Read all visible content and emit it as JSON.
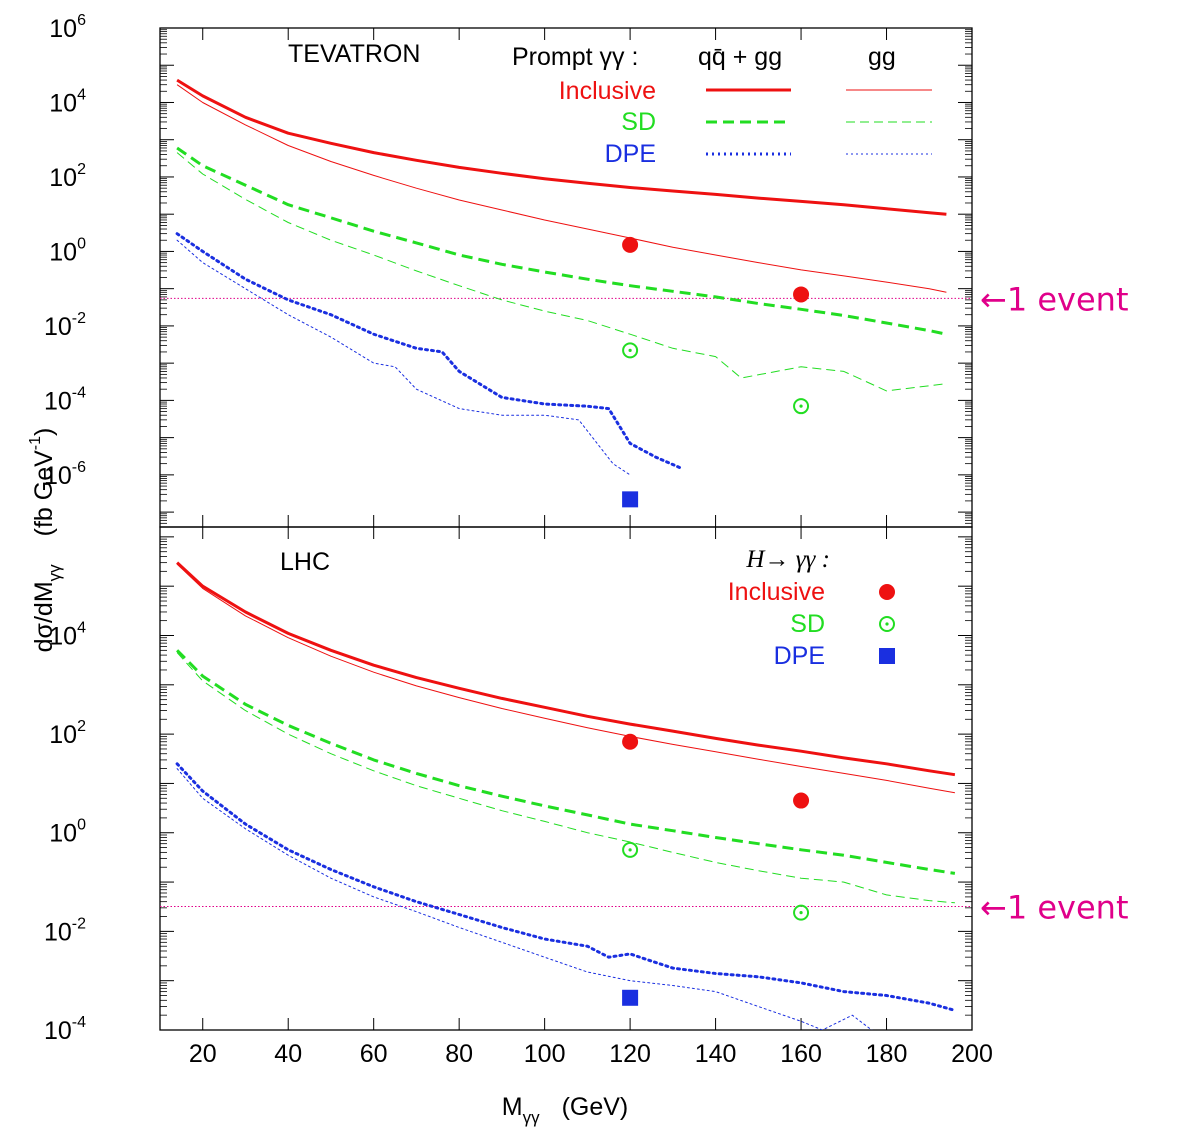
{
  "colors": {
    "inclusive": "#ee1111",
    "sd": "#22dd22",
    "dpe": "#1a2fe0",
    "event": "#e0008a"
  },
  "axes": {
    "xlabel": {
      "main": "M",
      "sub": "γγ",
      "unit": "(GeV)"
    },
    "ylabel": {
      "pre": "dσ/dM",
      "sub": "γγ",
      "unit_pre": "(fb GeV",
      "unit_exp": "-1",
      "unit_post": ")"
    },
    "xticks": [
      20,
      40,
      60,
      80,
      100,
      120,
      140,
      160,
      180,
      200
    ],
    "xlim": [
      10,
      200
    ]
  },
  "legend": {
    "prompt_label": "Prompt γγ :",
    "col_qq_gg": "qq̄ + gg",
    "col_gg": "gg",
    "row_inclusive": "Inclusive",
    "row_sd": "SD",
    "row_dpe": "DPE",
    "higgs_label": "H→ γγ :",
    "higgs_inclusive": "Inclusive",
    "higgs_sd": "SD",
    "higgs_dpe": "DPE"
  },
  "chart_data": [
    {
      "type": "line",
      "title": "TEVATRON",
      "ylim_log10": [
        -7.4,
        6
      ],
      "yticks_exp": [
        -6,
        -4,
        -2,
        0,
        2,
        4,
        6
      ],
      "one_event_level": 0.055,
      "one_event_label": "←1 event",
      "series": [
        {
          "name": "Inclusive qq̄ + gg",
          "style": "thick-solid",
          "color_key": "inclusive",
          "x": [
            14,
            20,
            30,
            40,
            50,
            60,
            70,
            80,
            90,
            100,
            110,
            120,
            130,
            140,
            150,
            160,
            170,
            180,
            190,
            194
          ],
          "y": [
            40000,
            15000,
            4000,
            1500,
            800,
            450,
            280,
            180,
            125,
            90,
            68,
            52,
            42,
            34,
            27,
            22,
            18,
            14,
            11,
            10
          ]
        },
        {
          "name": "Inclusive gg",
          "style": "thin-solid",
          "color_key": "inclusive",
          "x": [
            14,
            20,
            30,
            40,
            50,
            60,
            70,
            80,
            90,
            100,
            110,
            120,
            130,
            140,
            150,
            160,
            170,
            180,
            190,
            194
          ],
          "y": [
            30000,
            10000,
            2500,
            700,
            260,
            110,
            50,
            24,
            13,
            7,
            4,
            2.3,
            1.3,
            0.8,
            0.5,
            0.32,
            0.22,
            0.15,
            0.1,
            0.08
          ]
        },
        {
          "name": "SD qq̄ + gg",
          "style": "thick-dashed",
          "color_key": "sd",
          "x": [
            14,
            20,
            30,
            40,
            50,
            60,
            70,
            80,
            90,
            100,
            110,
            120,
            130,
            140,
            150,
            160,
            170,
            180,
            190,
            194
          ],
          "y": [
            600,
            200,
            60,
            18,
            8,
            3.5,
            1.7,
            0.8,
            0.45,
            0.28,
            0.18,
            0.12,
            0.085,
            0.06,
            0.04,
            0.028,
            0.019,
            0.012,
            0.0075,
            0.006
          ]
        },
        {
          "name": "SD gg",
          "style": "thin-dashed",
          "color_key": "sd",
          "x": [
            14,
            20,
            30,
            40,
            50,
            60,
            70,
            80,
            90,
            100,
            110,
            120,
            130,
            140,
            146,
            160,
            170,
            180,
            194
          ],
          "y": [
            450,
            120,
            25,
            6,
            2,
            0.8,
            0.3,
            0.12,
            0.05,
            0.025,
            0.014,
            0.006,
            0.0025,
            0.0015,
            0.0004,
            0.0008,
            0.0006,
            0.00018,
            0.00028
          ]
        },
        {
          "name": "DPE qq̄ + gg",
          "style": "thick-dotted",
          "color_key": "dpe",
          "x": [
            14,
            20,
            30,
            40,
            50,
            60,
            70,
            76,
            80,
            90,
            100,
            110,
            115,
            120,
            126,
            132
          ],
          "y": [
            3,
            1,
            0.18,
            0.05,
            0.02,
            0.006,
            0.0025,
            0.002,
            0.0006,
            0.00012,
            8e-05,
            7e-05,
            6e-05,
            7e-06,
            3e-06,
            1.5e-06
          ]
        },
        {
          "name": "DPE gg",
          "style": "thin-dotted",
          "color_key": "dpe",
          "x": [
            14,
            20,
            30,
            40,
            50,
            60,
            65,
            70,
            80,
            90,
            100,
            108,
            116,
            120
          ],
          "y": [
            2,
            0.5,
            0.1,
            0.02,
            0.005,
            0.001,
            0.0008,
            0.0002,
            6e-05,
            4e-05,
            4e-05,
            3e-05,
            2e-06,
            1e-06
          ]
        }
      ],
      "markers": [
        {
          "name": "Higgs Inclusive",
          "x": 120,
          "y": 1.5,
          "shape": "filled-circle",
          "color_key": "inclusive"
        },
        {
          "name": "Higgs Inclusive",
          "x": 160,
          "y": 0.07,
          "shape": "filled-circle",
          "color_key": "inclusive"
        },
        {
          "name": "Higgs SD",
          "x": 120,
          "y": 0.0022,
          "shape": "dotted-circle",
          "color_key": "sd"
        },
        {
          "name": "Higgs SD",
          "x": 160,
          "y": 7e-05,
          "shape": "dotted-circle",
          "color_key": "sd"
        },
        {
          "name": "Higgs DPE",
          "x": 120,
          "y": 2.2e-07,
          "shape": "square",
          "color_key": "dpe"
        }
      ]
    },
    {
      "type": "line",
      "title": "LHC",
      "ylim_log10": [
        -4,
        6.2
      ],
      "yticks_exp": [
        -4,
        -2,
        0,
        2,
        4
      ],
      "one_event_level": 0.032,
      "one_event_label": "←1 event",
      "series": [
        {
          "name": "Inclusive qq̄ + gg",
          "style": "thick-solid",
          "color_key": "inclusive",
          "x": [
            14,
            20,
            30,
            40,
            50,
            60,
            70,
            80,
            90,
            100,
            110,
            120,
            130,
            140,
            150,
            160,
            170,
            180,
            190,
            196
          ],
          "y": [
            300000,
            100000,
            30000,
            11000,
            5000,
            2500,
            1400,
            850,
            530,
            350,
            230,
            160,
            115,
            82,
            60,
            45,
            33,
            25,
            18,
            15
          ]
        },
        {
          "name": "Inclusive gg",
          "style": "thin-solid",
          "color_key": "inclusive",
          "x": [
            14,
            20,
            30,
            40,
            50,
            60,
            70,
            80,
            90,
            100,
            110,
            120,
            130,
            140,
            150,
            160,
            170,
            180,
            190,
            196
          ],
          "y": [
            280000,
            90000,
            25000,
            9000,
            3800,
            1800,
            950,
            550,
            330,
            210,
            135,
            90,
            62,
            44,
            31,
            22,
            16,
            11.5,
            8,
            6.5
          ]
        },
        {
          "name": "SD qq̄ + gg",
          "style": "thick-dashed",
          "color_key": "sd",
          "x": [
            14,
            20,
            30,
            40,
            50,
            60,
            70,
            80,
            90,
            100,
            110,
            120,
            130,
            140,
            150,
            160,
            170,
            180,
            190,
            196
          ],
          "y": [
            5000,
            1500,
            400,
            150,
            65,
            30,
            16,
            9,
            5.5,
            3.5,
            2.3,
            1.5,
            1.1,
            0.8,
            0.6,
            0.45,
            0.35,
            0.25,
            0.18,
            0.15
          ]
        },
        {
          "name": "SD gg",
          "style": "thin-dashed",
          "color_key": "sd",
          "x": [
            14,
            20,
            30,
            40,
            50,
            60,
            70,
            80,
            90,
            100,
            110,
            120,
            130,
            140,
            150,
            160,
            170,
            180,
            190,
            196
          ],
          "y": [
            4500,
            1200,
            300,
            100,
            40,
            18,
            9,
            5,
            2.8,
            1.7,
            1.0,
            0.65,
            0.4,
            0.25,
            0.17,
            0.12,
            0.1,
            0.055,
            0.042,
            0.038
          ]
        },
        {
          "name": "DPE qq̄ + gg",
          "style": "thick-dotted",
          "color_key": "dpe",
          "x": [
            14,
            20,
            30,
            40,
            50,
            60,
            70,
            80,
            90,
            100,
            110,
            115,
            120,
            125,
            130,
            140,
            150,
            160,
            170,
            180,
            190,
            196
          ],
          "y": [
            25,
            7,
            1.5,
            0.45,
            0.18,
            0.08,
            0.04,
            0.022,
            0.012,
            0.007,
            0.005,
            0.003,
            0.0035,
            0.0025,
            0.0018,
            0.0014,
            0.0012,
            0.0009,
            0.0006,
            0.0005,
            0.00035,
            0.00025
          ]
        },
        {
          "name": "DPE gg",
          "style": "thin-dotted",
          "color_key": "dpe",
          "x": [
            14,
            20,
            30,
            40,
            50,
            60,
            70,
            80,
            90,
            100,
            110,
            120,
            130,
            140,
            150,
            160,
            165,
            172,
            178
          ],
          "y": [
            20,
            5,
            1.2,
            0.35,
            0.12,
            0.05,
            0.025,
            0.012,
            0.006,
            0.003,
            0.0015,
            0.001,
            0.0008,
            0.0006,
            0.0003,
            0.00015,
            0.0001,
            0.0002,
            8e-05
          ]
        }
      ],
      "markers": [
        {
          "name": "Higgs Inclusive",
          "x": 120,
          "y": 70,
          "shape": "filled-circle",
          "color_key": "inclusive"
        },
        {
          "name": "Higgs Inclusive",
          "x": 160,
          "y": 4.5,
          "shape": "filled-circle",
          "color_key": "inclusive"
        },
        {
          "name": "Higgs SD",
          "x": 120,
          "y": 0.45,
          "shape": "dotted-circle",
          "color_key": "sd"
        },
        {
          "name": "Higgs SD",
          "x": 160,
          "y": 0.024,
          "shape": "dotted-circle",
          "color_key": "sd"
        },
        {
          "name": "Higgs DPE",
          "x": 120,
          "y": 0.00045,
          "shape": "square",
          "color_key": "dpe"
        }
      ]
    }
  ]
}
